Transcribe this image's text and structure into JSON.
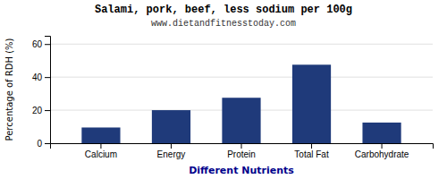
{
  "chart_data": {
    "type": "bar",
    "title": "Salami, pork, beef, less sodium per 100g",
    "subtitle": "www.dietandfitnesstoday.com",
    "xlabel": "Different Nutrients",
    "ylabel": "Percentage of RDH (%)",
    "categories": [
      "Calcium",
      "Energy",
      "Protein",
      "Total Fat",
      "Carbohydrate"
    ],
    "values": [
      9.5,
      20.0,
      27.5,
      47.5,
      12.5
    ],
    "color": "#1F3A7A",
    "ylim": [
      0,
      65
    ],
    "yticks": [
      0,
      20,
      40,
      60
    ],
    "grid": true
  }
}
